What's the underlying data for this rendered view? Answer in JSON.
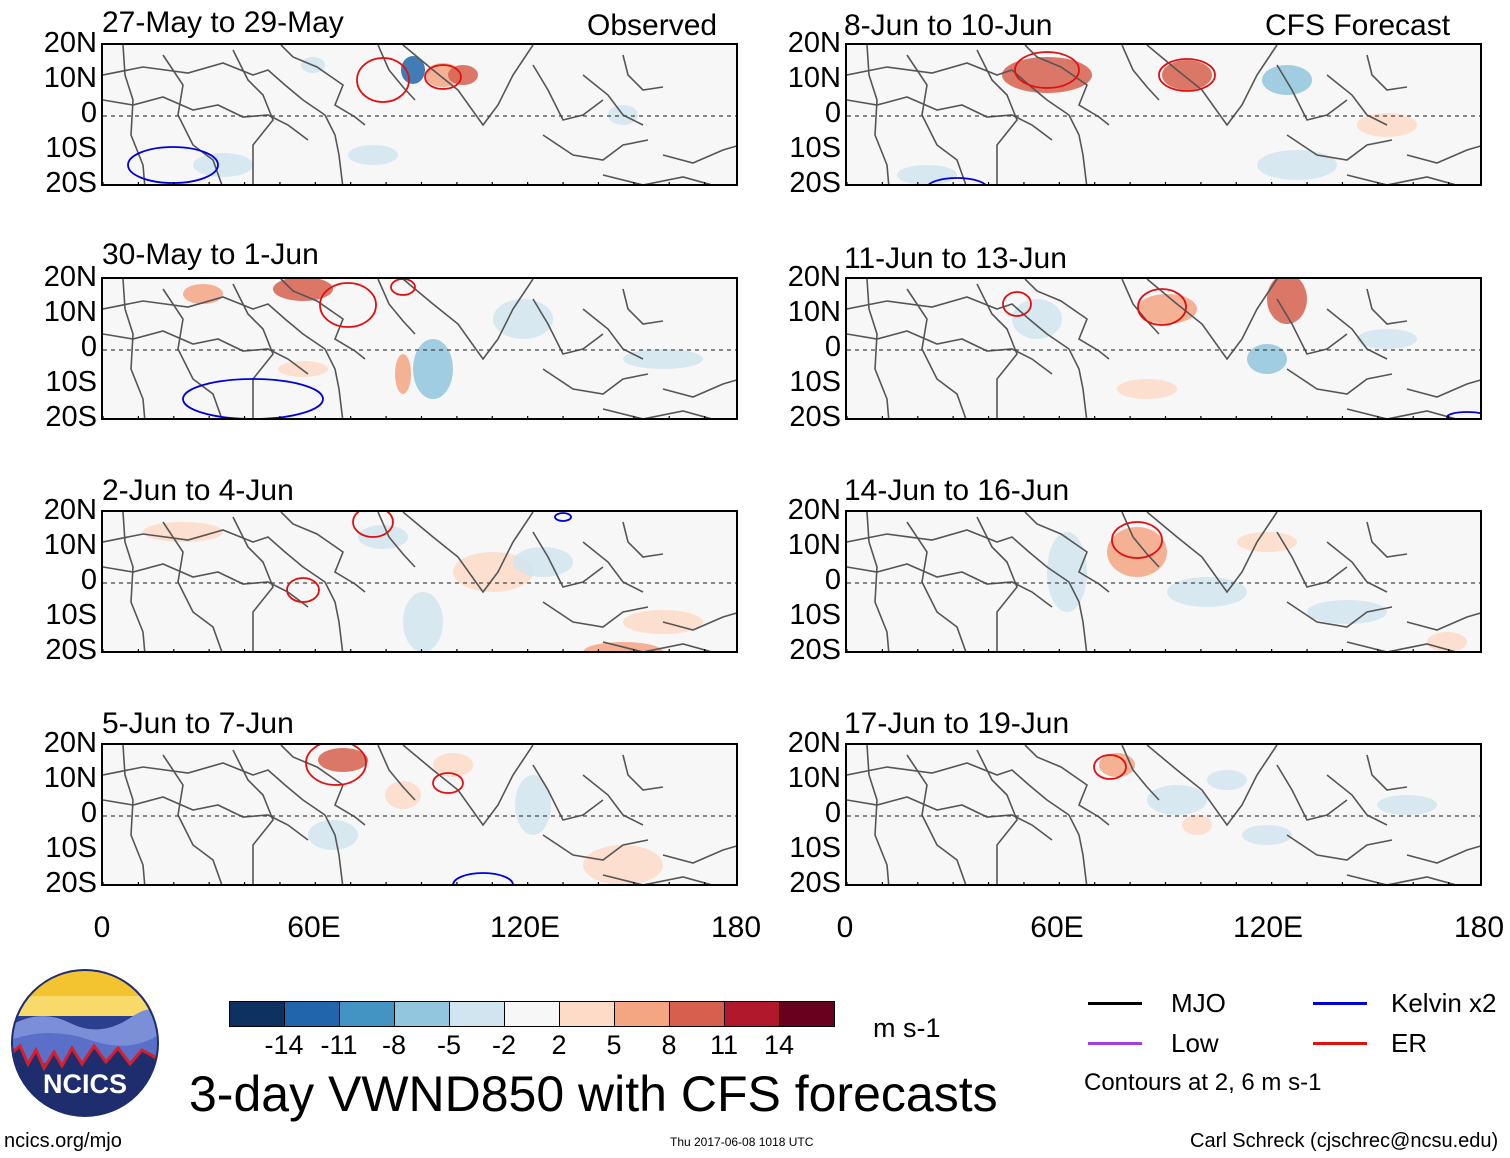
{
  "headers": {
    "left": "Observed",
    "right": "CFS Forecast"
  },
  "panels": [
    {
      "title": "27-May to 29-May"
    },
    {
      "title": "30-May to 1-Jun"
    },
    {
      "title": "2-Jun to 4-Jun"
    },
    {
      "title": "5-Jun to 7-Jun"
    },
    {
      "title": "8-Jun to 10-Jun"
    },
    {
      "title": "11-Jun to 13-Jun"
    },
    {
      "title": "14-Jun to 16-Jun"
    },
    {
      "title": "17-Jun to 19-Jun"
    }
  ],
  "axes": {
    "y_labels": [
      "20N",
      "10N",
      "0",
      "10S",
      "20S"
    ],
    "x_labels": [
      "0",
      "60E",
      "120E",
      "180"
    ]
  },
  "colorbar": {
    "unit": "m s-1",
    "labels": [
      "-14",
      "-11",
      "-8",
      "-5",
      "-2",
      "2",
      "5",
      "8",
      "11",
      "14"
    ],
    "colors": [
      "#0d3262",
      "#2166ac",
      "#4393c3",
      "#92c5de",
      "#d1e5f0",
      "#f7f7f7",
      "#fddbc7",
      "#f4a582",
      "#d6604d",
      "#b2182b",
      "#67001f"
    ]
  },
  "legend": {
    "items": [
      {
        "label": "MJO",
        "color": "#000000"
      },
      {
        "label": "Kelvin x2",
        "color": "#0000dd"
      },
      {
        "label": "Low",
        "color": "#a040e0"
      },
      {
        "label": "ER",
        "color": "#e01010"
      }
    ],
    "note": "Contours at 2, 6 m s-1"
  },
  "footer": {
    "main_title": "3-day VWND850 with CFS forecasts",
    "left": "ncics.org/mjo",
    "center": "Thu 2017-06-08 1018 UTC",
    "right": "Carl Schreck (cjschrec@ncsu.edu)",
    "logo_text": "NCICS"
  }
}
